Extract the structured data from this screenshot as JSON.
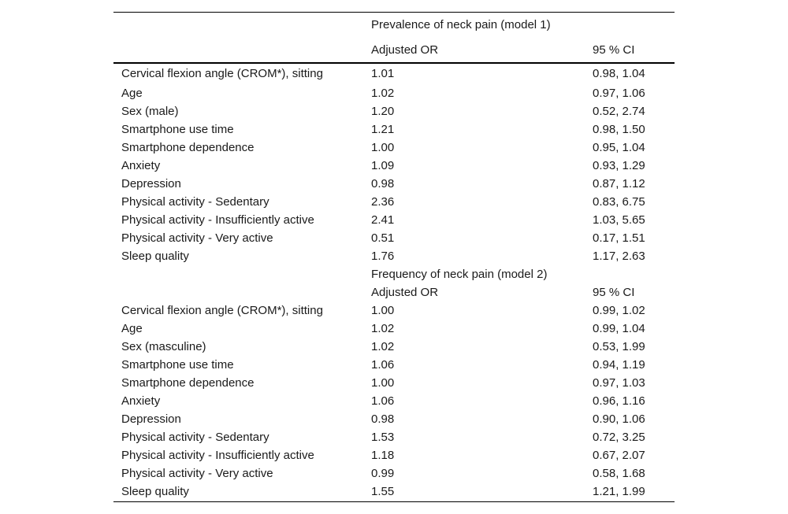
{
  "models": [
    {
      "title": "Prevalence of neck pain (model 1)",
      "col_or": "Adjusted OR",
      "col_ci": "95 % CI",
      "rows": [
        {
          "label": "Cervical flexion angle (CROM*), sitting",
          "or": "1.01",
          "ci": "0.98, 1.04"
        },
        {
          "label": "Age",
          "or": "1.02",
          "ci": "0.97, 1.06"
        },
        {
          "label": "Sex (male)",
          "or": "1.20",
          "ci": "0.52, 2.74"
        },
        {
          "label": "Smartphone use time",
          "or": "1.21",
          "ci": "0.98, 1.50"
        },
        {
          "label": "Smartphone dependence",
          "or": "1.00",
          "ci": "0.95, 1.04"
        },
        {
          "label": "Anxiety",
          "or": "1.09",
          "ci": "0.93, 1.29"
        },
        {
          "label": "Depression",
          "or": "0.98",
          "ci": "0.87, 1.12"
        },
        {
          "label": "Physical activity - Sedentary",
          "or": "2.36",
          "ci": "0.83, 6.75"
        },
        {
          "label": "Physical activity - Insufficiently active",
          "or": "2.41",
          "ci": "1.03, 5.65"
        },
        {
          "label": "Physical activity - Very active",
          "or": "0.51",
          "ci": "0.17, 1.51"
        },
        {
          "label": "Sleep quality",
          "or": "1.76",
          "ci": "1.17, 2.63"
        }
      ]
    },
    {
      "title": "Frequency of neck pain (model 2)",
      "col_or": "Adjusted OR",
      "col_ci": "95 % CI",
      "rows": [
        {
          "label": "Cervical flexion angle (CROM*), sitting",
          "or": "1.00",
          "ci": "0.99, 1.02"
        },
        {
          "label": "Age",
          "or": "1.02",
          "ci": "0.99, 1.04"
        },
        {
          "label": "Sex (masculine)",
          "or": "1.02",
          "ci": "0.53, 1.99"
        },
        {
          "label": "Smartphone use time",
          "or": "1.06",
          "ci": "0.94, 1.19"
        },
        {
          "label": "Smartphone dependence",
          "or": "1.00",
          "ci": "0.97, 1.03"
        },
        {
          "label": "Anxiety",
          "or": "1.06",
          "ci": "0.96, 1.16"
        },
        {
          "label": "Depression",
          "or": "0.98",
          "ci": "0.90, 1.06"
        },
        {
          "label": "Physical activity - Sedentary",
          "or": "1.53",
          "ci": "0.72, 3.25"
        },
        {
          "label": "Physical activity - Insufficiently active",
          "or": "1.18",
          "ci": "0.67, 2.07"
        },
        {
          "label": "Physical activity - Very active",
          "or": "0.99",
          "ci": "0.58, 1.68"
        },
        {
          "label": "Sleep quality",
          "or": "1.55",
          "ci": "1.21, 1.99"
        }
      ]
    }
  ]
}
